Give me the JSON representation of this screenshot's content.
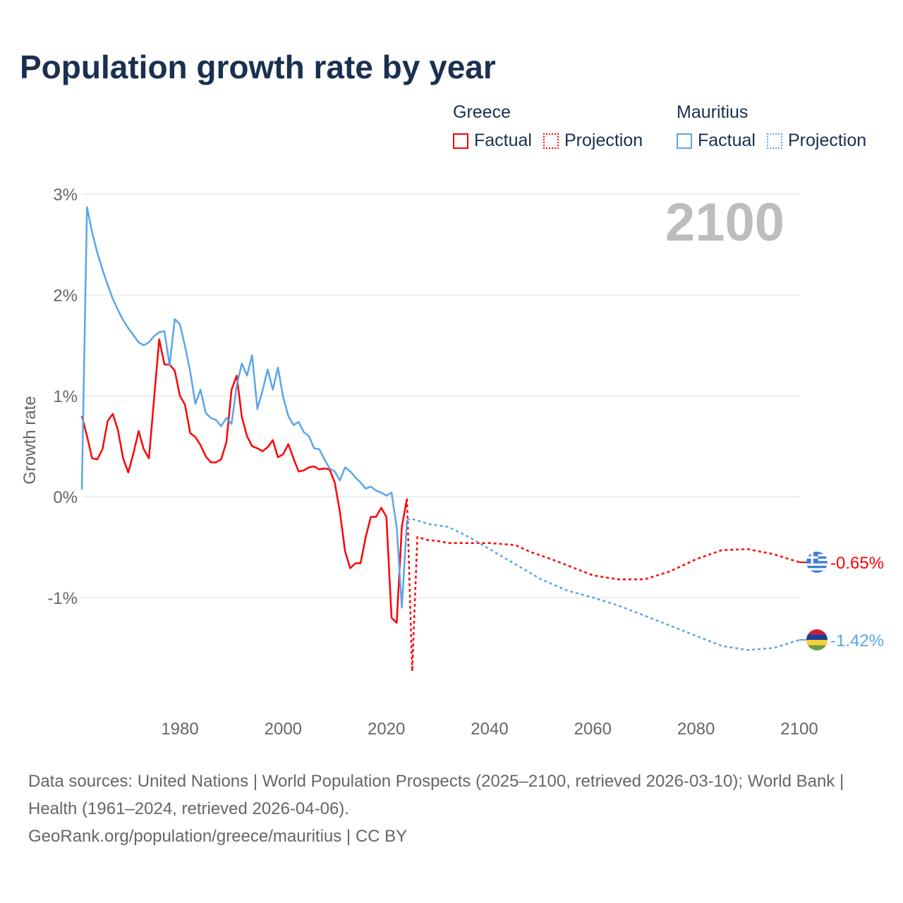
{
  "title": "Population growth rate by year",
  "current_year_label": "2100",
  "legend": {
    "groups": [
      {
        "name": "Greece",
        "factual": "Factual",
        "projection": "Projection",
        "color": "#ff0000"
      },
      {
        "name": "Mauritius",
        "factual": "Factual",
        "projection": "Projection",
        "color": "#5aa5ea"
      }
    ]
  },
  "footer": {
    "sources": "Data sources: United Nations | World Population Prospects (2025–2100, retrieved 2026-03-10); World Bank | Health (1961–2024, retrieved 2026-04-06).",
    "credit": "GeoRank.org/population/greece/mauritius | CC BY"
  },
  "chart_data": {
    "type": "line",
    "title": "Population growth rate by year",
    "xlabel": "",
    "ylabel": "Growth rate",
    "xlim": [
      1961,
      2100
    ],
    "ylim": [
      -1.75,
      3
    ],
    "x_ticks": [
      1980,
      2000,
      2020,
      2040,
      2060,
      2080,
      2100
    ],
    "y_ticks": [
      {
        "v": 3,
        "label": "3%"
      },
      {
        "v": 2,
        "label": "2%"
      },
      {
        "v": 1,
        "label": "1%"
      },
      {
        "v": 0,
        "label": "0%"
      },
      {
        "v": -1,
        "label": "-1%"
      }
    ],
    "grid": true,
    "legend_position": "top-right",
    "series": [
      {
        "name": "Greece Factual",
        "country": "Greece",
        "style": "solid",
        "color": "#ff0000",
        "x": [
          1961,
          1962,
          1963,
          1964,
          1965,
          1966,
          1967,
          1968,
          1969,
          1970,
          1971,
          1972,
          1973,
          1974,
          1975,
          1976,
          1977,
          1978,
          1979,
          1980,
          1981,
          1982,
          1983,
          1984,
          1985,
          1986,
          1987,
          1988,
          1989,
          1990,
          1991,
          1992,
          1993,
          1994,
          1995,
          1996,
          1997,
          1998,
          1999,
          2000,
          2001,
          2002,
          2003,
          2004,
          2005,
          2006,
          2007,
          2008,
          2009,
          2010,
          2011,
          2012,
          2013,
          2014,
          2015,
          2016,
          2017,
          2018,
          2019,
          2020,
          2021,
          2022,
          2023,
          2024
        ],
        "y": [
          0.8,
          0.6,
          0.38,
          0.37,
          0.47,
          0.75,
          0.82,
          0.66,
          0.38,
          0.24,
          0.43,
          0.65,
          0.47,
          0.38,
          0.97,
          1.56,
          1.31,
          1.31,
          1.25,
          1.0,
          0.91,
          0.63,
          0.59,
          0.51,
          0.4,
          0.34,
          0.34,
          0.37,
          0.54,
          1.06,
          1.2,
          0.79,
          0.6,
          0.5,
          0.48,
          0.45,
          0.49,
          0.56,
          0.39,
          0.42,
          0.52,
          0.38,
          0.25,
          0.26,
          0.29,
          0.3,
          0.27,
          0.28,
          0.27,
          0.14,
          -0.15,
          -0.54,
          -0.71,
          -0.66,
          -0.66,
          -0.4,
          -0.2,
          -0.2,
          -0.11,
          -0.2,
          -1.2,
          -1.25,
          -0.3,
          -0.02
        ]
      },
      {
        "name": "Greece Projection",
        "country": "Greece",
        "style": "dashed",
        "color": "#ff0000",
        "x": [
          2024,
          2025,
          2026,
          2028,
          2030,
          2032,
          2035,
          2040,
          2045,
          2048,
          2052,
          2056,
          2060,
          2065,
          2070,
          2075,
          2080,
          2085,
          2090,
          2095,
          2100
        ],
        "y": [
          -0.02,
          -1.73,
          -0.4,
          -0.43,
          -0.44,
          -0.46,
          -0.46,
          -0.46,
          -0.48,
          -0.55,
          -0.62,
          -0.7,
          -0.78,
          -0.82,
          -0.82,
          -0.74,
          -0.62,
          -0.53,
          -0.52,
          -0.57,
          -0.65
        ]
      },
      {
        "name": "Mauritius Factual",
        "country": "Mauritius",
        "style": "solid",
        "color": "#5aa5ea",
        "x": [
          1961,
          1962,
          1963,
          1964,
          1965,
          1966,
          1967,
          1968,
          1969,
          1970,
          1971,
          1972,
          1973,
          1974,
          1975,
          1976,
          1977,
          1978,
          1979,
          1980,
          1981,
          1982,
          1983,
          1984,
          1985,
          1986,
          1987,
          1988,
          1989,
          1990,
          1991,
          1992,
          1993,
          1994,
          1995,
          1996,
          1997,
          1998,
          1999,
          2000,
          2001,
          2002,
          2003,
          2004,
          2005,
          2006,
          2007,
          2008,
          2009,
          2010,
          2011,
          2012,
          2013,
          2014,
          2015,
          2016,
          2017,
          2018,
          2019,
          2020,
          2021,
          2022,
          2023,
          2024
        ],
        "y": [
          0.07,
          2.87,
          2.62,
          2.42,
          2.25,
          2.1,
          1.96,
          1.85,
          1.75,
          1.67,
          1.6,
          1.53,
          1.5,
          1.53,
          1.59,
          1.63,
          1.64,
          1.3,
          1.76,
          1.71,
          1.49,
          1.24,
          0.92,
          1.06,
          0.83,
          0.78,
          0.76,
          0.7,
          0.78,
          0.72,
          1.1,
          1.32,
          1.2,
          1.4,
          0.87,
          1.05,
          1.26,
          1.06,
          1.28,
          0.99,
          0.8,
          0.71,
          0.74,
          0.64,
          0.6,
          0.48,
          0.47,
          0.37,
          0.28,
          0.25,
          0.16,
          0.29,
          0.25,
          0.19,
          0.14,
          0.08,
          0.1,
          0.06,
          0.04,
          0.01,
          0.04,
          -0.3,
          -1.1,
          -0.23
        ]
      },
      {
        "name": "Mauritius Projection",
        "country": "Mauritius",
        "style": "dashed",
        "color": "#5aa5ea",
        "x": [
          2024,
          2025,
          2028,
          2032,
          2036,
          2040,
          2045,
          2050,
          2055,
          2060,
          2065,
          2070,
          2075,
          2080,
          2085,
          2090,
          2095,
          2100
        ],
        "y": [
          -0.23,
          -0.22,
          -0.27,
          -0.3,
          -0.4,
          -0.52,
          -0.67,
          -0.82,
          -0.93,
          -1.0,
          -1.08,
          -1.18,
          -1.28,
          -1.38,
          -1.48,
          -1.52,
          -1.5,
          -1.42
        ]
      }
    ],
    "end_labels": [
      {
        "country": "Greece",
        "value": -0.65,
        "label": "-0.65%",
        "color": "#ff0000"
      },
      {
        "country": "Mauritius",
        "value": -1.42,
        "label": "-1.42%",
        "color": "#5aa5ea"
      }
    ]
  }
}
